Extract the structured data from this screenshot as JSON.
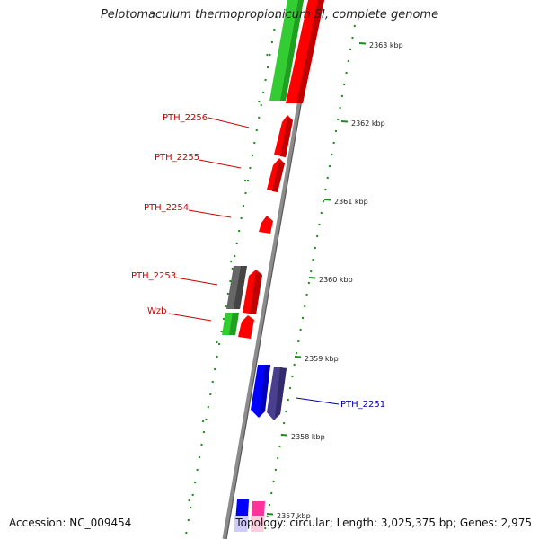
{
  "title": "Pelotomaculum thermopropionicum SI, complete genome",
  "footer": {
    "accession": "Accession: NC_009454",
    "summary": "Topology: circular; Length: 3,025,375 bp; Genes: 2,975"
  },
  "colors": {
    "backbone": "#8c8c8c",
    "forward_cds": "#ff0000",
    "green_cds": "#33cc33",
    "gray_cds": "#666666",
    "blue_cds": "#0000ff",
    "slate_cds": "#4a3f8f",
    "pink_cds": "#ff3399",
    "tick_green": "#1a8c1a",
    "label_red": "#cc0000",
    "label_blue": "#0000aa"
  },
  "kbp_ticks": [
    "2363 kbp",
    "2362 kbp",
    "2361 kbp",
    "2360 kbp",
    "2359 kbp",
    "2358 kbp",
    "2357 kbp"
  ],
  "gene_labels": [
    {
      "text": "PTH_2256",
      "color": "red"
    },
    {
      "text": "PTH_2255",
      "color": "red"
    },
    {
      "text": "PTH_2254",
      "color": "red"
    },
    {
      "text": "PTH_2253",
      "color": "red"
    },
    {
      "text": "Wzb",
      "color": "red"
    },
    {
      "text": "PTH_2251",
      "color": "blue"
    }
  ]
}
